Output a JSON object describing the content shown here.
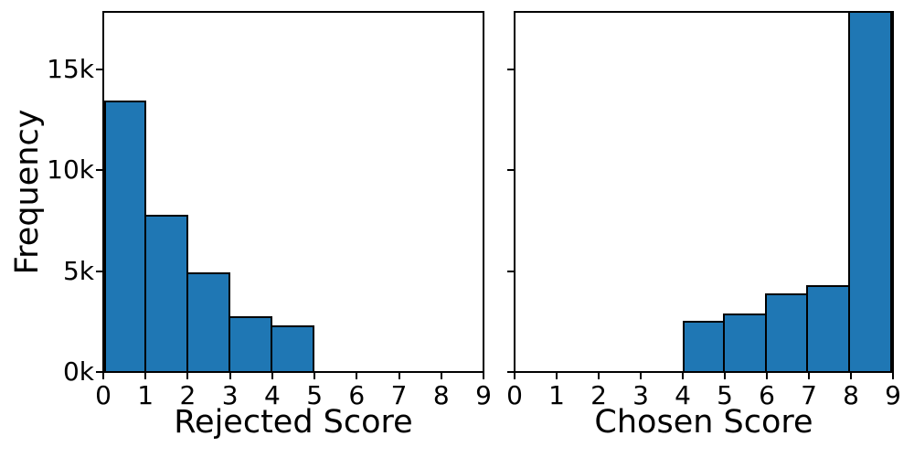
{
  "figure": {
    "background": "#ffffff",
    "axis_color": "#000000",
    "bar_fill_color": "#1f77b4",
    "bar_edge_color": "#000000"
  },
  "chart_data": [
    {
      "type": "bar",
      "subtype": "histogram",
      "title": "",
      "xlabel": "Rejected Score",
      "ylabel": "Frequency",
      "bin_edges": [
        0,
        1,
        2,
        3,
        4,
        5,
        6,
        7,
        8,
        9
      ],
      "values": [
        13400,
        7750,
        4900,
        2700,
        2250,
        0,
        0,
        0,
        0
      ],
      "xlim": [
        0,
        9
      ],
      "ylim": [
        0,
        17740
      ],
      "xticks": [
        "0",
        "1",
        "2",
        "3",
        "4",
        "5",
        "6",
        "7",
        "8",
        "9"
      ],
      "yticks": [
        {
          "value": 0,
          "label": "0k"
        },
        {
          "value": 5000,
          "label": "5k"
        },
        {
          "value": 10000,
          "label": "10k"
        },
        {
          "value": 15000,
          "label": "15k"
        }
      ],
      "y_tick_labels_shown": true,
      "grid": false,
      "legend": null
    },
    {
      "type": "bar",
      "subtype": "histogram",
      "title": "",
      "xlabel": "Chosen Score",
      "ylabel": "",
      "bin_edges": [
        0,
        1,
        2,
        3,
        4,
        5,
        6,
        7,
        8,
        9
      ],
      "values": [
        0,
        0,
        0,
        0,
        2500,
        2850,
        3850,
        4250,
        17740
      ],
      "clipped_bins": [
        8
      ],
      "note": "The 8-9 bar is clipped at the top of the axes; its true value exceeds the visible y-limit (~17.7k).",
      "xlim": [
        0,
        9
      ],
      "ylim": [
        0,
        17740
      ],
      "xticks": [
        "0",
        "1",
        "2",
        "3",
        "4",
        "5",
        "6",
        "7",
        "8",
        "9"
      ],
      "yticks": [
        {
          "value": 0,
          "label": "0k"
        },
        {
          "value": 5000,
          "label": "5k"
        },
        {
          "value": 10000,
          "label": "10k"
        },
        {
          "value": 15000,
          "label": "15k"
        }
      ],
      "y_tick_labels_shown": false,
      "grid": false,
      "legend": null
    }
  ]
}
